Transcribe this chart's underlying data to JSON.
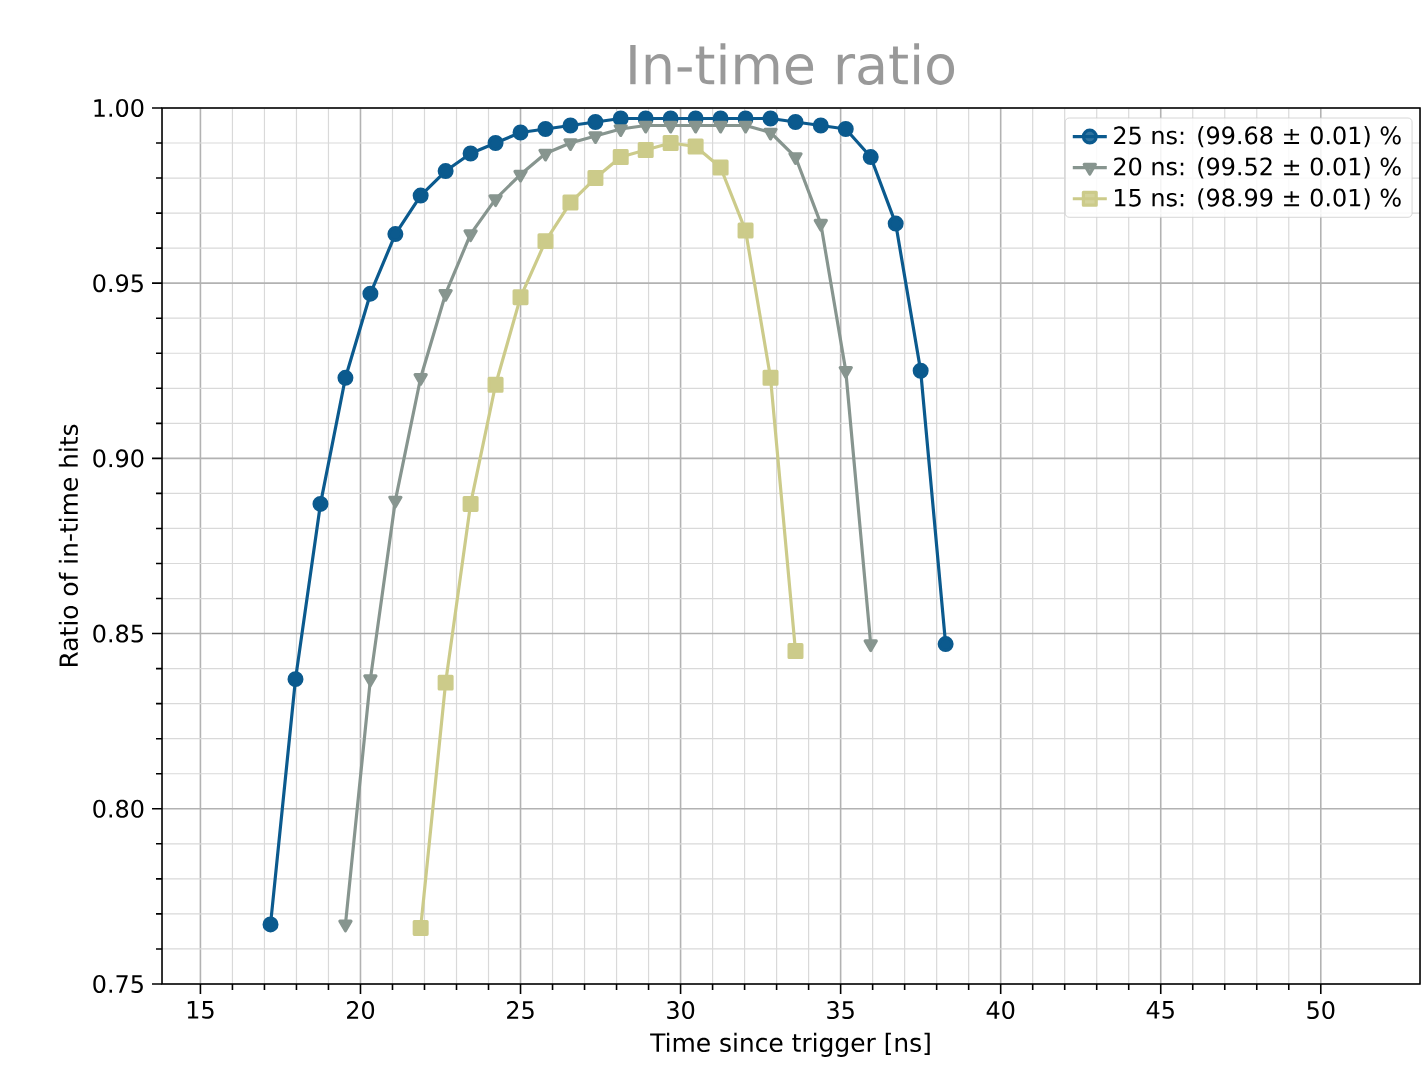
{
  "chart_data": {
    "type": "line",
    "title": "In-time ratio",
    "xlabel": "Time since trigger [ns]",
    "ylabel": "Ratio of in-time hits",
    "xlim": [
      13.8,
      53.1
    ],
    "ylim": [
      0.75,
      1.0
    ],
    "xticks": [
      15,
      20,
      25,
      30,
      35,
      40,
      45,
      50
    ],
    "yticks": [
      {
        "value": 0.75,
        "label": "0.75"
      },
      {
        "value": 0.8,
        "label": "0.80"
      },
      {
        "value": 0.85,
        "label": "0.85"
      },
      {
        "value": 0.9,
        "label": "0.90"
      },
      {
        "value": 0.95,
        "label": "0.95"
      },
      {
        "value": 1.0,
        "label": "1.00"
      }
    ],
    "grid": true,
    "legend": "top right",
    "line_style": "solid",
    "series": [
      {
        "name": "25 ns: (99.68 ± 0.01) %",
        "color": "#0b5a8e",
        "marker": "circle",
        "x": [
          17.19,
          17.97,
          18.75,
          19.53,
          20.31,
          21.09,
          21.88,
          22.66,
          23.44,
          24.22,
          25.0,
          25.78,
          26.56,
          27.34,
          28.13,
          28.91,
          29.69,
          30.47,
          31.25,
          32.03,
          32.81,
          33.59,
          34.38,
          35.16,
          35.94,
          36.72,
          37.5,
          38.28
        ],
        "values": [
          0.767,
          0.837,
          0.887,
          0.923,
          0.947,
          0.964,
          0.975,
          0.982,
          0.987,
          0.99,
          0.993,
          0.994,
          0.995,
          0.996,
          0.997,
          0.997,
          0.997,
          0.997,
          0.997,
          0.997,
          0.997,
          0.996,
          0.995,
          0.994,
          0.986,
          0.967,
          0.925,
          0.847
        ]
      },
      {
        "name": "20 ns: (99.52 ± 0.01) %",
        "color": "#87958f",
        "marker": "triangle",
        "x": [
          19.53,
          20.31,
          21.09,
          21.88,
          22.66,
          23.44,
          24.22,
          25.0,
          25.78,
          26.56,
          27.34,
          28.13,
          28.91,
          29.69,
          30.47,
          31.25,
          32.03,
          32.81,
          33.59,
          34.38,
          35.16,
          35.94
        ],
        "values": [
          0.767,
          0.837,
          0.888,
          0.923,
          0.947,
          0.964,
          0.974,
          0.981,
          0.987,
          0.99,
          0.992,
          0.994,
          0.995,
          0.995,
          0.995,
          0.995,
          0.995,
          0.993,
          0.986,
          0.967,
          0.925,
          0.847
        ]
      },
      {
        "name": "15 ns: (98.99 ± 0.01) %",
        "color": "#cccb8a",
        "marker": "square",
        "x": [
          21.88,
          22.66,
          23.44,
          24.22,
          25.0,
          25.78,
          26.56,
          27.34,
          28.13,
          28.91,
          29.69,
          30.47,
          31.25,
          32.03,
          32.81,
          33.59
        ],
        "values": [
          0.766,
          0.836,
          0.887,
          0.921,
          0.946,
          0.962,
          0.973,
          0.98,
          0.986,
          0.988,
          0.99,
          0.989,
          0.983,
          0.965,
          0.923,
          0.845
        ]
      }
    ]
  }
}
